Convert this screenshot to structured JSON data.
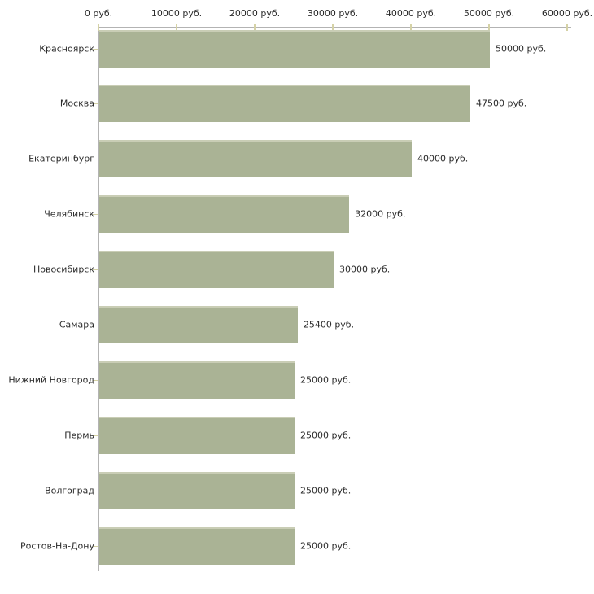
{
  "chart_data": {
    "type": "bar",
    "orientation": "horizontal",
    "title": "",
    "xlabel": "",
    "ylabel": "",
    "unit": "руб.",
    "categories": [
      "Красноярск",
      "Москва",
      "Екатеринбург",
      "Челябинск",
      "Новосибирск",
      "Самара",
      "Нижний Новгород",
      "Пермь",
      "Волгоград",
      "Ростов-На-Дону"
    ],
    "values": [
      50000,
      47500,
      40000,
      32000,
      30000,
      25400,
      25000,
      25000,
      25000,
      25000
    ],
    "value_labels": [
      "50000 руб.",
      "47500 руб.",
      "40000 руб.",
      "32000 руб.",
      "30000 руб.",
      "25400 руб.",
      "25000 руб.",
      "25000 руб.",
      "25000 руб.",
      "25000 руб."
    ],
    "x_axis": {
      "position": "top",
      "min": 0,
      "max": 60000,
      "tick_values": [
        0,
        10000,
        20000,
        30000,
        40000,
        50000,
        60000
      ],
      "tick_labels": [
        "0 руб.",
        "10000 руб.",
        "20000 руб.",
        "30000 руб.",
        "40000 руб.",
        "50000 руб.",
        "60000 руб."
      ]
    },
    "grid": false,
    "legend": false,
    "colors": {
      "background": "#ffffff",
      "bar_fill": "#aab395",
      "bar_top_edge": "#c9cdb5",
      "axis_line": "#b3b3b3",
      "tick_mark": "#d5d2a6",
      "text": "#2b2b2b"
    }
  }
}
